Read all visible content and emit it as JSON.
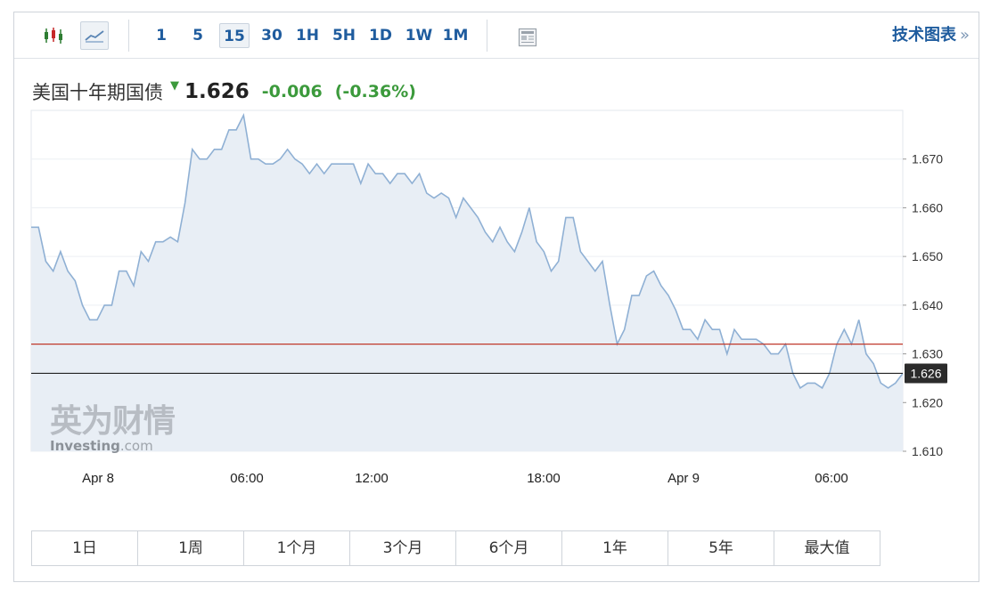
{
  "toolbar": {
    "icons": {
      "candle": "candlestick-icon",
      "line": "line-chart-icon",
      "news": "news-icon"
    },
    "intervals": [
      "1",
      "5",
      "15",
      "30",
      "1H",
      "5H",
      "1D",
      "1W",
      "1M"
    ],
    "active_interval": "15",
    "tech_chart_label": "技术图表",
    "tech_chart_chevron": "»"
  },
  "quote": {
    "name": "美国十年期国债",
    "price": "1.626",
    "change": "-0.006",
    "change_pct": "(-0.36%)",
    "direction": "down",
    "change_color": "#3c9a3c"
  },
  "watermark": {
    "cn": "英为财情",
    "en_bold": "Investing",
    "en_suffix": ".com"
  },
  "ranges": [
    "1日",
    "1周",
    "1个月",
    "3个月",
    "6个月",
    "1年",
    "5年",
    "最大值"
  ],
  "chart_data": {
    "type": "area",
    "x_tick_labels": [
      "Apr 8",
      "06:00",
      "12:00",
      "18:00",
      "Apr 9",
      "06:00"
    ],
    "y_ticks": [
      1.67,
      1.66,
      1.65,
      1.64,
      1.63,
      1.62,
      1.61
    ],
    "ylim": [
      1.61,
      1.68
    ],
    "current_value": 1.626,
    "current_label": "1.626",
    "reference_line": 1.632,
    "line_color": "#8fb0d4",
    "fill_color": "#e8eef5",
    "reference_color": "#c0392b",
    "current_line_color": "#222222",
    "series": [
      {
        "values": [
          1.656,
          1.656,
          1.649,
          1.647,
          1.651,
          1.647,
          1.645,
          1.64,
          1.637,
          1.637,
          1.64,
          1.64,
          1.647,
          1.647,
          1.644,
          1.651,
          1.649,
          1.653,
          1.653,
          1.654,
          1.653,
          1.661,
          1.672,
          1.67,
          1.67,
          1.672,
          1.672,
          1.676,
          1.676,
          1.679,
          1.67,
          1.67,
          1.669,
          1.669,
          1.67,
          1.672,
          1.67,
          1.669,
          1.667,
          1.669,
          1.667,
          1.669,
          1.669,
          1.669,
          1.669,
          1.665,
          1.669,
          1.667,
          1.667,
          1.665,
          1.667,
          1.667,
          1.665,
          1.667,
          1.663,
          1.662,
          1.663,
          1.662,
          1.658,
          1.662,
          1.66,
          1.658,
          1.655,
          1.653,
          1.656,
          1.653,
          1.651,
          1.655,
          1.66,
          1.653,
          1.651,
          1.647,
          1.649,
          1.658,
          1.658,
          1.651,
          1.649,
          1.647,
          1.649,
          1.64,
          1.632,
          1.635,
          1.642,
          1.642,
          1.646,
          1.647,
          1.644,
          1.642,
          1.639,
          1.635,
          1.635,
          1.633,
          1.637,
          1.635,
          1.635,
          1.63,
          1.635,
          1.633,
          1.633,
          1.633,
          1.632,
          1.63,
          1.63,
          1.632,
          1.626,
          1.623,
          1.624,
          1.624,
          1.623,
          1.626,
          1.632,
          1.635,
          1.632,
          1.637,
          1.63,
          1.628,
          1.624,
          1.623,
          1.624,
          1.626
        ]
      }
    ]
  }
}
